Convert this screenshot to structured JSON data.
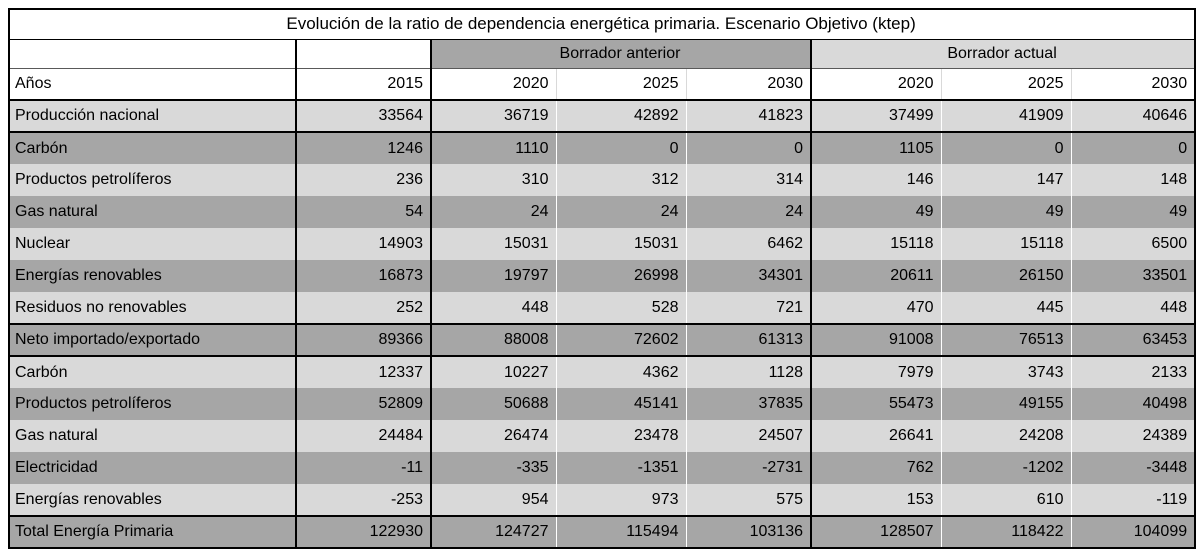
{
  "colors": {
    "band_dark": "#a6a6a6",
    "band_light": "#d9d9d9",
    "border": "#000000",
    "background": "#ffffff"
  },
  "chart_data": {
    "type": "table",
    "title": "Evolución de la ratio de dependencia energética primaria. Escenario Objetivo (ktep)",
    "column_groups": [
      {
        "label": "",
        "span": 2
      },
      {
        "label": "Borrador anterior",
        "span": 3
      },
      {
        "label": "Borrador actual",
        "span": 3
      }
    ],
    "years_label": "Años",
    "years": [
      "2015",
      "2020",
      "2025",
      "2030",
      "2020",
      "2025",
      "2030"
    ],
    "rows": [
      {
        "label": "Producción nacional",
        "values": [
          33564,
          36719,
          42892,
          41823,
          37499,
          41909,
          40646
        ],
        "shade": "light",
        "section": "bottom"
      },
      {
        "label": "Carbón",
        "values": [
          1246,
          1110,
          0,
          0,
          1105,
          0,
          0
        ],
        "shade": "dark"
      },
      {
        "label": "Productos petrolíferos",
        "values": [
          236,
          310,
          312,
          314,
          146,
          147,
          148
        ],
        "shade": "light"
      },
      {
        "label": "Gas natural",
        "values": [
          54,
          24,
          24,
          24,
          49,
          49,
          49
        ],
        "shade": "dark"
      },
      {
        "label": "Nuclear",
        "values": [
          14903,
          15031,
          15031,
          6462,
          15118,
          15118,
          6500
        ],
        "shade": "light"
      },
      {
        "label": "Energías renovables",
        "values": [
          16873,
          19797,
          26998,
          34301,
          20611,
          26150,
          33501
        ],
        "shade": "dark"
      },
      {
        "label": "Residuos no renovables",
        "values": [
          252,
          448,
          528,
          721,
          470,
          445,
          448
        ],
        "shade": "light"
      },
      {
        "label": "Neto importado/exportado",
        "values": [
          89366,
          88008,
          72602,
          61313,
          91008,
          76513,
          63453
        ],
        "shade": "dark",
        "section": "both"
      },
      {
        "label": "Carbón",
        "values": [
          12337,
          10227,
          4362,
          1128,
          7979,
          3743,
          2133
        ],
        "shade": "light"
      },
      {
        "label": "Productos petrolíferos",
        "values": [
          52809,
          50688,
          45141,
          37835,
          55473,
          49155,
          40498
        ],
        "shade": "dark"
      },
      {
        "label": "Gas natural",
        "values": [
          24484,
          26474,
          23478,
          24507,
          26641,
          24208,
          24389
        ],
        "shade": "light"
      },
      {
        "label": "Electricidad",
        "values": [
          -11,
          -335,
          -1351,
          -2731,
          762,
          -1202,
          -3448
        ],
        "shade": "dark"
      },
      {
        "label": "Energías renovables",
        "values": [
          -253,
          954,
          973,
          575,
          153,
          610,
          -119
        ],
        "shade": "light"
      },
      {
        "label": "Total Energía Primaria",
        "values": [
          122930,
          124727,
          115494,
          103136,
          128507,
          118422,
          104099
        ],
        "shade": "dark",
        "section": "top"
      }
    ]
  }
}
